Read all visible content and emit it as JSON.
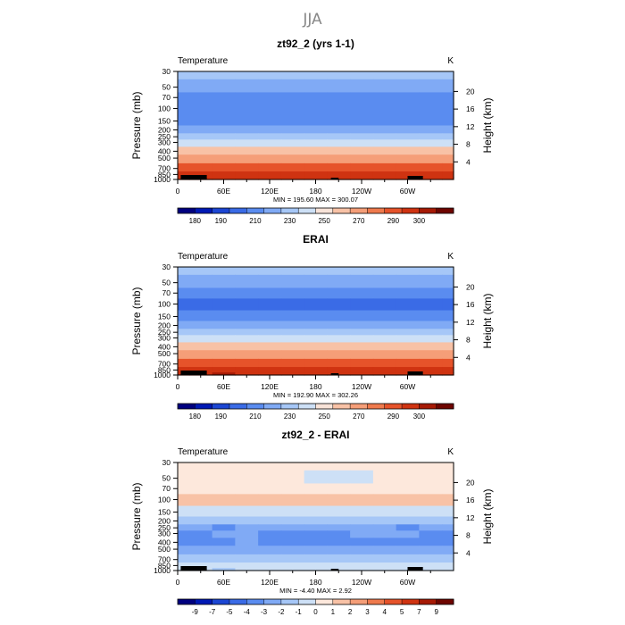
{
  "figure": {
    "title": "JJA"
  },
  "chart_data": [
    {
      "type": "heatmap",
      "title": "zt92_2 (yrs 1-1)",
      "left_label": "Temperature",
      "right_label": "K",
      "ylabel": "Pressure (mb)",
      "y2label": "Height (km)",
      "xticks": [
        "0",
        "60E",
        "120E",
        "180",
        "120W",
        "60W"
      ],
      "yticks": [
        "30",
        "50",
        "70",
        "100",
        "150",
        "200",
        "250",
        "300",
        "400",
        "500",
        "700",
        "850",
        "1000"
      ],
      "y2ticks": [
        "4",
        "8",
        "12",
        "16",
        "20"
      ],
      "stats": "MIN =  195.60   MAX =  300.07",
      "min": 195.6,
      "max": 300.07,
      "colorbar_labels": [
        "180",
        "190",
        "210",
        "230",
        "250",
        "270",
        "290",
        "300"
      ],
      "colors": [
        "#00007f",
        "#0019b4",
        "#1c46d3",
        "#3a6be6",
        "#5a8cf0",
        "#80aaf5",
        "#a6c7f7",
        "#cde0f6",
        "#f8e3d8",
        "#f8c2a6",
        "#f59e78",
        "#ef7a4d",
        "#e6532a",
        "#cf3311",
        "#a61a05",
        "#6e0500"
      ],
      "x": [
        0,
        30,
        60,
        90,
        120,
        150,
        180,
        210,
        240,
        270,
        300,
        330,
        360
      ],
      "pressure_levels": [
        30,
        50,
        70,
        100,
        150,
        200,
        250,
        300,
        400,
        500,
        700,
        850,
        1000
      ],
      "values": [
        [
          222,
          222,
          222,
          222,
          222,
          222,
          222,
          222,
          222,
          222,
          222,
          222,
          222
        ],
        [
          213,
          213,
          213,
          213,
          213,
          213,
          213,
          213,
          213,
          213,
          213,
          213,
          213
        ],
        [
          207,
          207,
          207,
          207,
          207,
          207,
          207,
          207,
          207,
          207,
          207,
          207,
          207
        ],
        [
          200,
          200,
          200,
          200,
          200,
          200,
          200,
          200,
          200,
          200,
          200,
          200,
          200
        ],
        [
          208,
          208,
          208,
          208,
          208,
          208,
          208,
          208,
          208,
          208,
          208,
          208,
          208
        ],
        [
          218,
          218,
          218,
          218,
          218,
          218,
          218,
          218,
          218,
          218,
          218,
          218,
          218
        ],
        [
          226,
          226,
          226,
          226,
          226,
          226,
          226,
          226,
          226,
          226,
          226,
          226,
          226
        ],
        [
          234,
          234,
          234,
          234,
          234,
          234,
          234,
          234,
          234,
          234,
          234,
          234,
          234
        ],
        [
          250,
          250,
          250,
          250,
          250,
          250,
          250,
          250,
          250,
          250,
          250,
          250,
          250
        ],
        [
          263,
          263,
          263,
          263,
          263,
          263,
          263,
          263,
          263,
          263,
          263,
          263,
          263
        ],
        [
          280,
          281,
          281,
          280,
          280,
          280,
          280,
          280,
          280,
          280,
          281,
          281,
          280
        ],
        [
          290,
          290,
          291,
          290,
          290,
          290,
          290,
          290,
          290,
          290,
          290,
          290,
          290
        ],
        [
          296,
          297,
          298,
          297,
          296,
          296,
          296,
          296,
          296,
          297,
          298,
          297,
          296
        ]
      ]
    },
    {
      "type": "heatmap",
      "title": "ERAI",
      "left_label": "Temperature",
      "right_label": "K",
      "ylabel": "Pressure (mb)",
      "y2label": "Height (km)",
      "xticks": [
        "0",
        "60E",
        "120E",
        "180",
        "120W",
        "60W"
      ],
      "yticks": [
        "30",
        "50",
        "70",
        "100",
        "150",
        "200",
        "250",
        "300",
        "400",
        "500",
        "700",
        "850",
        "1000"
      ],
      "y2ticks": [
        "4",
        "8",
        "12",
        "16",
        "20"
      ],
      "stats": "MIN =  192.90   MAX =  302.26",
      "min": 192.9,
      "max": 302.26,
      "colorbar_labels": [
        "180",
        "190",
        "210",
        "230",
        "250",
        "270",
        "290",
        "300"
      ],
      "colors": [
        "#00007f",
        "#0019b4",
        "#1c46d3",
        "#3a6be6",
        "#5a8cf0",
        "#80aaf5",
        "#a6c7f7",
        "#cde0f6",
        "#f8e3d8",
        "#f8c2a6",
        "#f59e78",
        "#ef7a4d",
        "#e6532a",
        "#cf3311",
        "#a61a05",
        "#6e0500"
      ],
      "x": [
        0,
        30,
        60,
        90,
        120,
        150,
        180,
        210,
        240,
        270,
        300,
        330,
        360
      ],
      "pressure_levels": [
        30,
        50,
        70,
        100,
        150,
        200,
        250,
        300,
        400,
        500,
        700,
        850,
        1000
      ],
      "values": [
        [
          222,
          222,
          222,
          222,
          222,
          222,
          222,
          222,
          222,
          222,
          222,
          222,
          222
        ],
        [
          214,
          214,
          214,
          214,
          214,
          214,
          214,
          214,
          214,
          214,
          214,
          214,
          214
        ],
        [
          207,
          207,
          207,
          207,
          207,
          207,
          207,
          207,
          207,
          207,
          207,
          207,
          207
        ],
        [
          198,
          198,
          198,
          198,
          198,
          198,
          198,
          198,
          198,
          198,
          198,
          198,
          198
        ],
        [
          208,
          208,
          208,
          208,
          208,
          208,
          208,
          208,
          208,
          208,
          208,
          208,
          208
        ],
        [
          219,
          219,
          219,
          219,
          219,
          219,
          219,
          219,
          219,
          219,
          219,
          219,
          219
        ],
        [
          228,
          228,
          228,
          228,
          228,
          228,
          228,
          228,
          228,
          228,
          228,
          228,
          228
        ],
        [
          237,
          237,
          237,
          237,
          237,
          237,
          237,
          237,
          237,
          237,
          237,
          237,
          237
        ],
        [
          252,
          252,
          252,
          252,
          252,
          252,
          252,
          252,
          252,
          252,
          252,
          252,
          252
        ],
        [
          265,
          265,
          265,
          265,
          265,
          265,
          265,
          265,
          265,
          265,
          265,
          265,
          265
        ],
        [
          281,
          281,
          282,
          281,
          281,
          281,
          281,
          281,
          281,
          281,
          281,
          282,
          281
        ],
        [
          290,
          291,
          292,
          291,
          290,
          290,
          290,
          290,
          290,
          291,
          291,
          291,
          290
        ],
        [
          297,
          298,
          300,
          299,
          297,
          297,
          297,
          297,
          297,
          298,
          299,
          298,
          297
        ]
      ]
    },
    {
      "type": "heatmap",
      "title": "zt92_2 - ERAI",
      "left_label": "Temperature",
      "right_label": "K",
      "ylabel": "Pressure (mb)",
      "y2label": "Height (km)",
      "xticks": [
        "0",
        "60E",
        "120E",
        "180",
        "120W",
        "60W"
      ],
      "yticks": [
        "30",
        "50",
        "70",
        "100",
        "150",
        "200",
        "250",
        "300",
        "400",
        "500",
        "700",
        "850",
        "1000"
      ],
      "y2ticks": [
        "4",
        "8",
        "12",
        "16",
        "20"
      ],
      "stats": "MIN =  -4.40   MAX =    2.92",
      "min": -4.4,
      "max": 2.92,
      "colorbar_labels": [
        "-9",
        "-7",
        "-5",
        "-4",
        "-3",
        "-2",
        "-1",
        "0",
        "1",
        "2",
        "3",
        "4",
        "5",
        "7",
        "9"
      ],
      "colors": [
        "#00007f",
        "#0019b4",
        "#1c46d3",
        "#3a6be6",
        "#5a8cf0",
        "#80aaf5",
        "#a6c7f7",
        "#cde0f6",
        "#fde8dc",
        "#f8c2a6",
        "#f59e78",
        "#ef7a4d",
        "#e6532a",
        "#cf3311",
        "#a61a05",
        "#6e0500"
      ],
      "x": [
        0,
        30,
        60,
        90,
        120,
        150,
        180,
        210,
        240,
        270,
        300,
        330,
        360
      ],
      "pressure_levels": [
        30,
        50,
        70,
        100,
        150,
        200,
        250,
        300,
        400,
        500,
        700,
        850,
        1000
      ],
      "values": [
        [
          0.2,
          0.2,
          0.2,
          0.2,
          0.2,
          0.2,
          0.2,
          0.2,
          0.2,
          0.2,
          0.2,
          0.2,
          0.2
        ],
        [
          0.4,
          0.4,
          0.4,
          0.4,
          0.4,
          0.4,
          -0.3,
          -0.3,
          -0.3,
          0.4,
          0.4,
          0.4,
          0.4
        ],
        [
          0.5,
          0.5,
          0.5,
          0.5,
          0.5,
          0.5,
          0.5,
          0.5,
          0.5,
          0.5,
          0.5,
          0.5,
          0.5
        ],
        [
          1.4,
          1.6,
          1.5,
          1.2,
          1.1,
          1.3,
          1.5,
          1.3,
          1.1,
          1.2,
          1.4,
          1.7,
          1.5
        ],
        [
          -0.5,
          -0.5,
          -0.5,
          -0.5,
          -0.5,
          -0.5,
          -0.5,
          -0.5,
          -0.5,
          -0.5,
          -0.5,
          -0.5,
          -0.5
        ],
        [
          -1.5,
          -1.5,
          -1.8,
          -1.8,
          -1.5,
          -1.5,
          -1.5,
          -1.5,
          -1.5,
          -1.5,
          -2.0,
          -2.0,
          -1.5
        ],
        [
          -2.5,
          -2.5,
          -3.2,
          -2.5,
          -2.5,
          -2.5,
          -2.5,
          -2.5,
          -2.5,
          -2.5,
          -3.2,
          -2.5,
          -2.5
        ],
        [
          -3.2,
          -3.2,
          -3.0,
          -2.5,
          -3.8,
          -3.8,
          -3.8,
          -3.5,
          -3.0,
          -3.0,
          -2.5,
          -3.2,
          -3.2
        ],
        [
          -3.2,
          -3.2,
          -3.2,
          -3.0,
          -3.2,
          -3.5,
          -3.5,
          -3.5,
          -3.2,
          -3.2,
          -3.2,
          -3.2,
          -3.2
        ],
        [
          -2.5,
          -2.5,
          -2.5,
          -2.5,
          -2.5,
          -2.5,
          -2.5,
          -2.5,
          -2.5,
          -2.5,
          -2.5,
          -2.5,
          -2.5
        ],
        [
          -1.5,
          -1.5,
          -1.5,
          -1.5,
          -1.5,
          -1.5,
          -1.5,
          -1.5,
          -1.5,
          -1.5,
          -1.5,
          -1.5,
          -1.5
        ],
        [
          -0.5,
          -0.8,
          -0.8,
          -0.5,
          -0.5,
          -0.5,
          -0.5,
          -0.5,
          -0.8,
          -0.5,
          -0.5,
          -0.5,
          -0.5
        ],
        [
          -0.5,
          -0.5,
          -1.2,
          -0.5,
          -0.5,
          -0.5,
          -0.5,
          -0.5,
          -0.5,
          -0.5,
          -0.5,
          -0.5,
          -0.5
        ]
      ]
    }
  ]
}
